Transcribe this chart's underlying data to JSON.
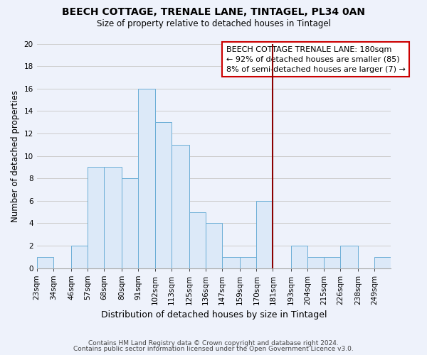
{
  "title": "BEECH COTTAGE, TRENALE LANE, TINTAGEL, PL34 0AN",
  "subtitle": "Size of property relative to detached houses in Tintagel",
  "xlabel": "Distribution of detached houses by size in Tintagel",
  "ylabel": "Number of detached properties",
  "bin_labels": [
    "23sqm",
    "34sqm",
    "46sqm",
    "57sqm",
    "68sqm",
    "80sqm",
    "91sqm",
    "102sqm",
    "113sqm",
    "125sqm",
    "136sqm",
    "147sqm",
    "159sqm",
    "170sqm",
    "181sqm",
    "193sqm",
    "204sqm",
    "215sqm",
    "226sqm",
    "238sqm",
    "249sqm"
  ],
  "bin_edges": [
    23,
    34,
    46,
    57,
    68,
    80,
    91,
    102,
    113,
    125,
    136,
    147,
    159,
    170,
    181,
    193,
    204,
    215,
    226,
    238,
    249
  ],
  "bar_heights": [
    1,
    0,
    2,
    9,
    9,
    8,
    16,
    13,
    11,
    5,
    4,
    1,
    1,
    6,
    0,
    2,
    1,
    1,
    2,
    0,
    1
  ],
  "bar_color": "#dce9f8",
  "bar_edge_color": "#6baed6",
  "grid_color": "#cccccc",
  "marker_value": 181,
  "marker_color": "#8b0000",
  "ylim": [
    0,
    20
  ],
  "yticks": [
    0,
    2,
    4,
    6,
    8,
    10,
    12,
    14,
    16,
    18,
    20
  ],
  "annotation_title": "BEECH COTTAGE TRENALE LANE: 180sqm",
  "annotation_line1": "← 92% of detached houses are smaller (85)",
  "annotation_line2": "8% of semi-detached houses are larger (7) →",
  "footer_line1": "Contains HM Land Registry data © Crown copyright and database right 2024.",
  "footer_line2": "Contains public sector information licensed under the Open Government Licence v3.0.",
  "background_color": "#eef2fb",
  "title_fontsize": 10,
  "subtitle_fontsize": 8.5,
  "xlabel_fontsize": 9,
  "ylabel_fontsize": 8.5,
  "tick_fontsize": 7.5,
  "ann_fontsize": 8.0,
  "footer_fontsize": 6.5
}
